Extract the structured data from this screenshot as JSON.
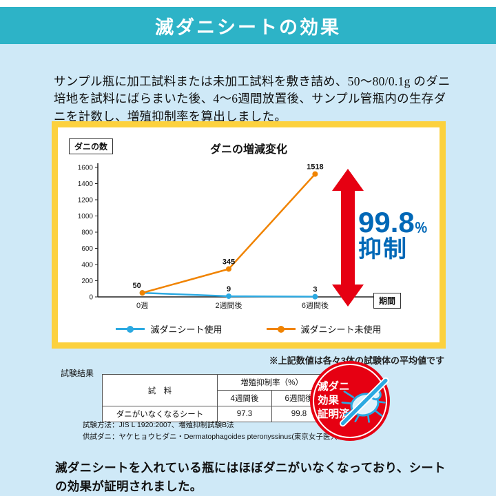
{
  "header": {
    "title": "滅ダニシートの効果"
  },
  "intro": {
    "text": "サンプル瓶に加工試料または未加工試料を敷き詰め、50〜80/0.1g のダニ培地を試料にばらまいた後、4〜6週間放置後、サンプル管瓶内の生存ダニを計数し、増殖抑制率を算出しました。"
  },
  "chart_data": {
    "type": "line",
    "title": "ダニの増減変化",
    "ylabel_box": "ダニの数",
    "xlabel_box": "期間",
    "x": [
      "0週",
      "2週間後",
      "6週間後"
    ],
    "yticks": [
      0,
      200,
      400,
      600,
      800,
      1000,
      1200,
      1400,
      1600
    ],
    "ylim": [
      0,
      1600
    ],
    "series": [
      {
        "name": "滅ダニシート使用",
        "color": "#2ca9e1",
        "values": [
          50,
          9,
          3
        ]
      },
      {
        "name": "滅ダニシート未使用",
        "color": "#f08300",
        "values": [
          50,
          345,
          1518
        ]
      }
    ],
    "annotation": {
      "number": "99.8",
      "unit": "％",
      "label": "抑制",
      "color": "#0068b7",
      "arrow_color": "#e60012"
    },
    "note": "※上記数値は各々3体の試験体の平均値です"
  },
  "results": {
    "section_label": "試験結果",
    "table": {
      "sample_header": "試　料",
      "group_header": "増殖抑制率（%）",
      "sub_headers": [
        "4週間後",
        "6週間後"
      ],
      "row": {
        "sample": "ダニがいなくなるシート",
        "values": [
          "97.3",
          "99.8"
        ]
      }
    },
    "method_line": "試験方法：JIS L 1920:2007、増殖抑制試験B法",
    "mite_line": "供試ダニ：ヤケヒョウヒダニ・Dermatophagoides pteronyssinus(東京女子医大系)",
    "badge": {
      "lines": [
        "滅ダニ",
        "効果",
        "証明済"
      ],
      "bg": "#e60012"
    }
  },
  "footer": {
    "text": "滅ダニシートを入れている瓶にはほぼダニがいなくなっており、シートの効果が証明されました。"
  }
}
